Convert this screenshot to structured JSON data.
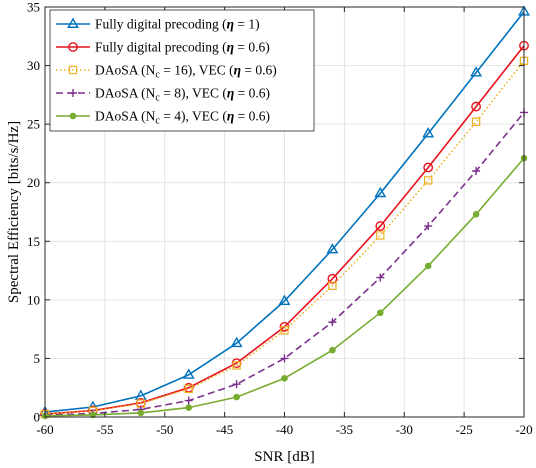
{
  "chart_data": {
    "type": "line",
    "xlabel": "SNR [dB]",
    "ylabel": "Spectral Efficiency [bits/s/Hz]",
    "xlim": [
      -60,
      -20
    ],
    "ylim": [
      0,
      35
    ],
    "xticks": [
      -60,
      -55,
      -50,
      -45,
      -40,
      -35,
      -30,
      -25,
      -20
    ],
    "yticks": [
      0,
      5,
      10,
      15,
      20,
      25,
      30,
      35
    ],
    "grid": true,
    "legend_position": "top-left",
    "x": [
      -60,
      -56,
      -52,
      -48,
      -44,
      -40,
      -36,
      -32,
      -28,
      -24,
      -20
    ],
    "series": [
      {
        "name": "Fully digital precoding (η = 1)",
        "name_parts": [
          "Fully digital precoding (",
          "η",
          " = 1)"
        ],
        "color": "#0072BD",
        "marker": "triangle",
        "line_style": "solid",
        "values": [
          0.42,
          0.85,
          1.8,
          3.6,
          6.3,
          9.9,
          14.3,
          19.1,
          24.2,
          29.4,
          34.6
        ]
      },
      {
        "name": "Fully digital precoding (η = 0.6)",
        "name_parts": [
          "Fully digital precoding (",
          "η",
          " = 0.6)"
        ],
        "color": "#E8101B",
        "marker": "circle",
        "line_style": "solid",
        "values": [
          0.26,
          0.55,
          1.2,
          2.5,
          4.6,
          7.7,
          11.8,
          16.3,
          21.3,
          26.5,
          31.7
        ]
      },
      {
        "name": "DAoSA (Nc = 16), VEC (η = 0.6)",
        "name_parts": [
          "DAoSA (N",
          "c",
          " = 16), VEC (",
          "η",
          " = 0.6)"
        ],
        "color": "#EDB120",
        "marker": "square",
        "line_style": "dotted",
        "values": [
          0.25,
          0.52,
          1.15,
          2.4,
          4.4,
          7.4,
          11.2,
          15.5,
          20.2,
          25.2,
          30.4
        ]
      },
      {
        "name": "DAoSA (Nc = 8), VEC (η = 0.6)",
        "name_parts": [
          "DAoSA (N",
          "c",
          " = 8), VEC (",
          "η",
          " = 0.6)"
        ],
        "color": "#7E2F8E",
        "marker": "plus",
        "line_style": "dashed",
        "values": [
          0.15,
          0.3,
          0.65,
          1.4,
          2.8,
          5.0,
          8.1,
          11.9,
          16.3,
          21.0,
          26.0
        ]
      },
      {
        "name": "DAoSA (Nc = 4), VEC (η = 0.6)",
        "name_parts": [
          "DAoSA (N",
          "c",
          " = 4), VEC (",
          "η",
          " = 0.6)"
        ],
        "color": "#77AC30",
        "marker": "dot",
        "line_style": "solid",
        "values": [
          0.1,
          0.18,
          0.35,
          0.8,
          1.7,
          3.3,
          5.7,
          8.9,
          12.9,
          17.3,
          22.1
        ]
      }
    ]
  }
}
